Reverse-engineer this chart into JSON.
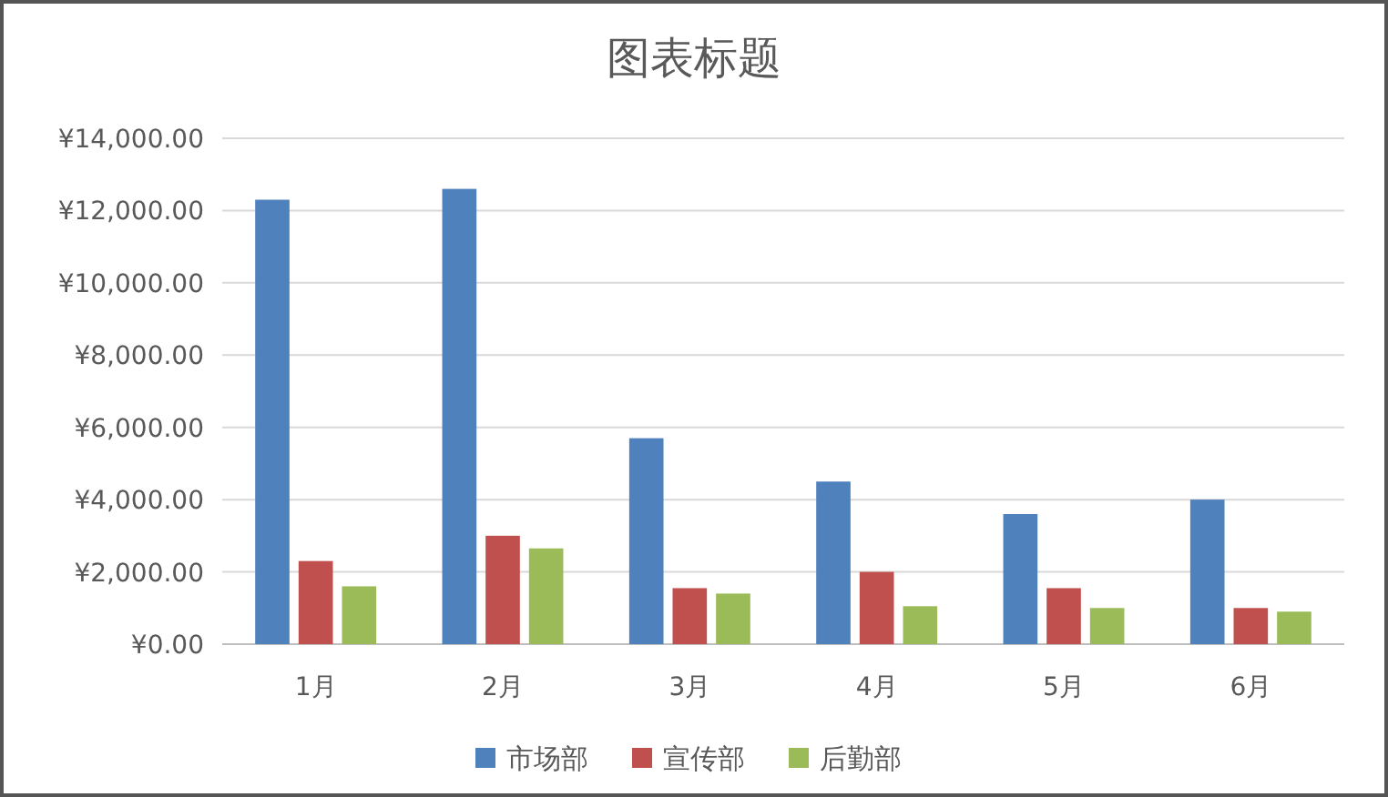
{
  "chart_data": {
    "type": "bar",
    "title": "图表标题",
    "categories": [
      "1月",
      "2月",
      "3月",
      "4月",
      "5月",
      "6月"
    ],
    "series": [
      {
        "name": "市场部",
        "color": "#4f81bd",
        "values": [
          12300,
          12600,
          5700,
          4500,
          3600,
          4000
        ]
      },
      {
        "name": "宣传部",
        "color": "#c0504d",
        "values": [
          2300,
          3000,
          1550,
          2000,
          1550,
          1000
        ]
      },
      {
        "name": "后勤部",
        "color": "#9bbb59",
        "values": [
          1600,
          2650,
          1400,
          1050,
          1000,
          900
        ]
      }
    ],
    "ylim": [
      0,
      14000
    ],
    "yticks": [
      {
        "value": 0,
        "label": "¥0.00"
      },
      {
        "value": 2000,
        "label": "¥2,000.00"
      },
      {
        "value": 4000,
        "label": "¥4,000.00"
      },
      {
        "value": 6000,
        "label": "¥6,000.00"
      },
      {
        "value": 8000,
        "label": "¥8,000.00"
      },
      {
        "value": 10000,
        "label": "¥10,000.00"
      },
      {
        "value": 12000,
        "label": "¥12,000.00"
      },
      {
        "value": 14000,
        "label": "¥14,000.00"
      }
    ],
    "grid": "y",
    "legend": "bottom"
  }
}
